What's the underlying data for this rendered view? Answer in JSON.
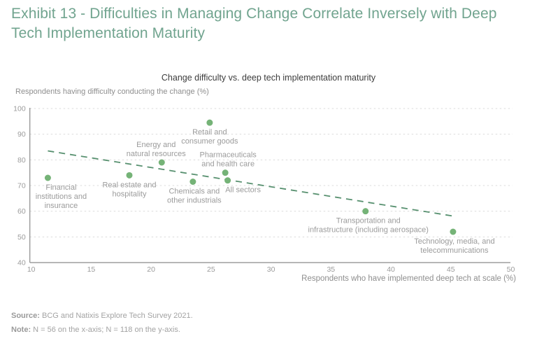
{
  "header": {
    "title": "Exhibit 13 - Difficulties in Managing Change Correlate Inversely with Deep\nTech Implementation Maturity"
  },
  "chart_data": {
    "type": "scatter",
    "title": "Change difficulty vs. deep tech implementation maturity",
    "xlabel": "Respondents who have implemented deep tech at scale (%)",
    "ylabel": "Respondents having difficulty conducting the change (%)",
    "xlim": [
      10,
      50
    ],
    "ylim": [
      40,
      100
    ],
    "xticks": [
      10,
      15,
      20,
      25,
      30,
      35,
      40,
      45,
      50
    ],
    "yticks": [
      40,
      50,
      60,
      70,
      80,
      90,
      100
    ],
    "grid": "horizontal-dashed",
    "legend": "none",
    "point_color": "#75B377",
    "trendline_color": "#57906F",
    "points": [
      {
        "name": "Financial institutions and insurance",
        "x": 11.5,
        "y": 73,
        "label_lines": [
          "Financial",
          "institutions and",
          "insurance"
        ],
        "label_pos": "below",
        "label_dx": 19
      },
      {
        "name": "Real estate and hospitality",
        "x": 18.3,
        "y": 74,
        "label_lines": [
          "Real estate and",
          "hospitality"
        ],
        "label_pos": "below",
        "label_dx": 0
      },
      {
        "name": "Energy and natural resources",
        "x": 21,
        "y": 79,
        "label_lines": [
          "Energy and",
          "natural resources"
        ],
        "label_pos": "above",
        "label_dx": -8
      },
      {
        "name": "Chemicals and other industrials",
        "x": 23.6,
        "y": 71.5,
        "label_lines": [
          "Chemicals and",
          "other industrials"
        ],
        "label_pos": "below",
        "label_dx": 2
      },
      {
        "name": "Retail and consumer goods",
        "x": 25,
        "y": 94.5,
        "label_lines": [
          "Retail and",
          "consumer goods"
        ],
        "label_pos": "below",
        "label_dx": 0
      },
      {
        "name": "Pharmaceuticals and health care",
        "x": 26.3,
        "y": 75,
        "label_lines": [
          "Pharmaceuticals",
          "and health care"
        ],
        "label_pos": "above",
        "label_dx": 4
      },
      {
        "name": "All sectors",
        "x": 26.5,
        "y": 72,
        "label_lines": [
          "All sectors"
        ],
        "label_pos": "below",
        "label_dx": 22
      },
      {
        "name": "Transportation and infrastructure (including aerospace)",
        "x": 38,
        "y": 60,
        "label_lines": [
          "Transportation and",
          "infrastructure (including aerospace)"
        ],
        "label_pos": "below",
        "label_dx": 4
      },
      {
        "name": "Technology, media, and telecommunications",
        "x": 45.3,
        "y": 52,
        "label_lines": [
          "Technology, media, and",
          "telecommunications"
        ],
        "label_pos": "below",
        "label_dx": 2
      }
    ],
    "trendline": {
      "x1": 11.5,
      "y1": 83.5,
      "x2": 45.2,
      "y2": 58.2
    }
  },
  "footer": {
    "source_label": "Source:",
    "source_text": " BCG and Natixis Explore Tech Survey 2021.",
    "note_label": "Note:",
    "note_text": " N = 56 on the x-axis; N = 118 on the y-axis."
  },
  "colors": {
    "title_green": "#71A48F",
    "grid": "#DBDBDB",
    "spine": "#8A8A8A",
    "tick_text": "#9B9B9B",
    "point_label_text": "#9B9B9B"
  }
}
